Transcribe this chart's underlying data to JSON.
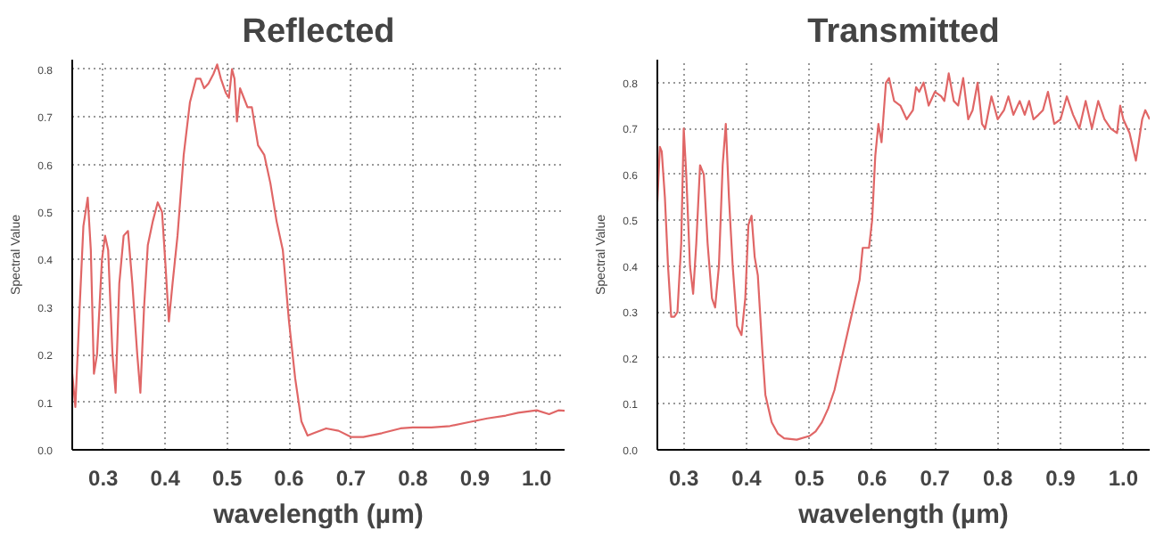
{
  "chart_data": [
    {
      "type": "line",
      "title": "Reflected",
      "xlabel": "wavelength (µm)",
      "ylabel": "Spectral Value",
      "xlim": [
        0.25,
        1.045
      ],
      "ylim": [
        0,
        0.82
      ],
      "xticks": [
        0.3,
        0.4,
        0.5,
        0.6,
        0.7,
        0.8,
        0.9,
        {
          "value": 1.0,
          "label": "1.0"
        }
      ],
      "yticks": [
        {
          "value": 0,
          "label": "0.0"
        },
        0.1,
        0.2,
        0.3,
        0.4,
        0.5,
        0.6,
        0.7,
        0.8
      ],
      "grid": true,
      "line_style": "solid",
      "series": [
        {
          "color": "#e06666",
          "x": [
            0.25,
            0.255,
            0.262,
            0.268,
            0.275,
            0.28,
            0.285,
            0.29,
            0.298,
            0.303,
            0.308,
            0.315,
            0.32,
            0.326,
            0.333,
            0.34,
            0.347,
            0.355,
            0.36,
            0.366,
            0.372,
            0.38,
            0.388,
            0.395,
            0.4,
            0.406,
            0.412,
            0.42,
            0.43,
            0.44,
            0.45,
            0.457,
            0.463,
            0.47,
            0.478,
            0.484,
            0.49,
            0.498,
            0.503,
            0.508,
            0.512,
            0.516,
            0.521,
            0.527,
            0.533,
            0.54,
            0.55,
            0.56,
            0.57,
            0.58,
            0.59,
            0.6,
            0.61,
            0.62,
            0.63,
            0.64,
            0.66,
            0.68,
            0.7,
            0.72,
            0.75,
            0.78,
            0.8,
            0.83,
            0.86,
            0.89,
            0.92,
            0.95,
            0.97,
            1.0,
            1.02,
            1.035,
            1.045
          ],
          "values": [
            0.16,
            0.09,
            0.3,
            0.47,
            0.53,
            0.42,
            0.16,
            0.2,
            0.4,
            0.45,
            0.42,
            0.2,
            0.12,
            0.35,
            0.45,
            0.46,
            0.35,
            0.2,
            0.12,
            0.3,
            0.43,
            0.48,
            0.52,
            0.5,
            0.4,
            0.27,
            0.35,
            0.45,
            0.62,
            0.73,
            0.78,
            0.78,
            0.76,
            0.77,
            0.79,
            0.81,
            0.78,
            0.75,
            0.74,
            0.8,
            0.78,
            0.69,
            0.76,
            0.74,
            0.72,
            0.72,
            0.64,
            0.62,
            0.56,
            0.48,
            0.42,
            0.27,
            0.15,
            0.06,
            0.03,
            0.035,
            0.045,
            0.04,
            0.027,
            0.027,
            0.035,
            0.045,
            0.047,
            0.047,
            0.05,
            0.058,
            0.066,
            0.072,
            0.078,
            0.083,
            0.075,
            0.083,
            0.082
          ]
        }
      ]
    },
    {
      "type": "line",
      "title": "Transmitted",
      "xlabel": "wavelength (µm)",
      "ylabel": "Spectral Value",
      "xlim": [
        0.258,
        1.042
      ],
      "ylim": [
        0,
        0.85
      ],
      "xticks": [
        0.3,
        0.4,
        0.5,
        0.6,
        0.7,
        0.8,
        0.9,
        {
          "value": 1.0,
          "label": "1.0"
        }
      ],
      "yticks": [
        {
          "value": 0,
          "label": "0.0"
        },
        0.1,
        0.2,
        0.3,
        0.4,
        0.5,
        0.6,
        0.7,
        0.8
      ],
      "grid": true,
      "line_style": "solid",
      "series": [
        {
          "color": "#e06666",
          "x": [
            0.258,
            0.262,
            0.265,
            0.27,
            0.275,
            0.28,
            0.285,
            0.29,
            0.296,
            0.3,
            0.304,
            0.31,
            0.315,
            0.32,
            0.326,
            0.332,
            0.338,
            0.345,
            0.35,
            0.356,
            0.362,
            0.367,
            0.372,
            0.378,
            0.385,
            0.392,
            0.398,
            0.403,
            0.408,
            0.413,
            0.418,
            0.425,
            0.43,
            0.44,
            0.45,
            0.46,
            0.48,
            0.5,
            0.51,
            0.52,
            0.53,
            0.54,
            0.55,
            0.56,
            0.57,
            0.58,
            0.585,
            0.595,
            0.6,
            0.605,
            0.61,
            0.615,
            0.622,
            0.627,
            0.635,
            0.645,
            0.655,
            0.665,
            0.67,
            0.675,
            0.682,
            0.69,
            0.7,
            0.71,
            0.715,
            0.722,
            0.73,
            0.737,
            0.745,
            0.753,
            0.76,
            0.768,
            0.775,
            0.78,
            0.79,
            0.8,
            0.81,
            0.817,
            0.825,
            0.835,
            0.843,
            0.85,
            0.857,
            0.865,
            0.872,
            0.88,
            0.89,
            0.9,
            0.91,
            0.92,
            0.93,
            0.94,
            0.95,
            0.96,
            0.97,
            0.98,
            0.99,
            0.995,
            1.0,
            1.01,
            1.02,
            1.03,
            1.035,
            1.042
          ],
          "values": [
            0.54,
            0.66,
            0.65,
            0.55,
            0.4,
            0.29,
            0.29,
            0.3,
            0.45,
            0.7,
            0.6,
            0.4,
            0.34,
            0.45,
            0.62,
            0.6,
            0.45,
            0.33,
            0.31,
            0.4,
            0.62,
            0.71,
            0.55,
            0.4,
            0.27,
            0.25,
            0.33,
            0.49,
            0.51,
            0.42,
            0.38,
            0.22,
            0.12,
            0.06,
            0.035,
            0.025,
            0.022,
            0.03,
            0.04,
            0.06,
            0.09,
            0.13,
            0.19,
            0.25,
            0.31,
            0.37,
            0.44,
            0.44,
            0.5,
            0.64,
            0.71,
            0.67,
            0.8,
            0.81,
            0.76,
            0.75,
            0.72,
            0.74,
            0.79,
            0.78,
            0.8,
            0.75,
            0.78,
            0.77,
            0.76,
            0.82,
            0.76,
            0.75,
            0.81,
            0.72,
            0.74,
            0.8,
            0.71,
            0.7,
            0.77,
            0.72,
            0.74,
            0.77,
            0.73,
            0.76,
            0.73,
            0.76,
            0.72,
            0.73,
            0.74,
            0.78,
            0.71,
            0.72,
            0.77,
            0.73,
            0.7,
            0.76,
            0.7,
            0.76,
            0.72,
            0.7,
            0.69,
            0.75,
            0.72,
            0.69,
            0.63,
            0.72,
            0.74,
            0.72
          ]
        }
      ]
    }
  ]
}
